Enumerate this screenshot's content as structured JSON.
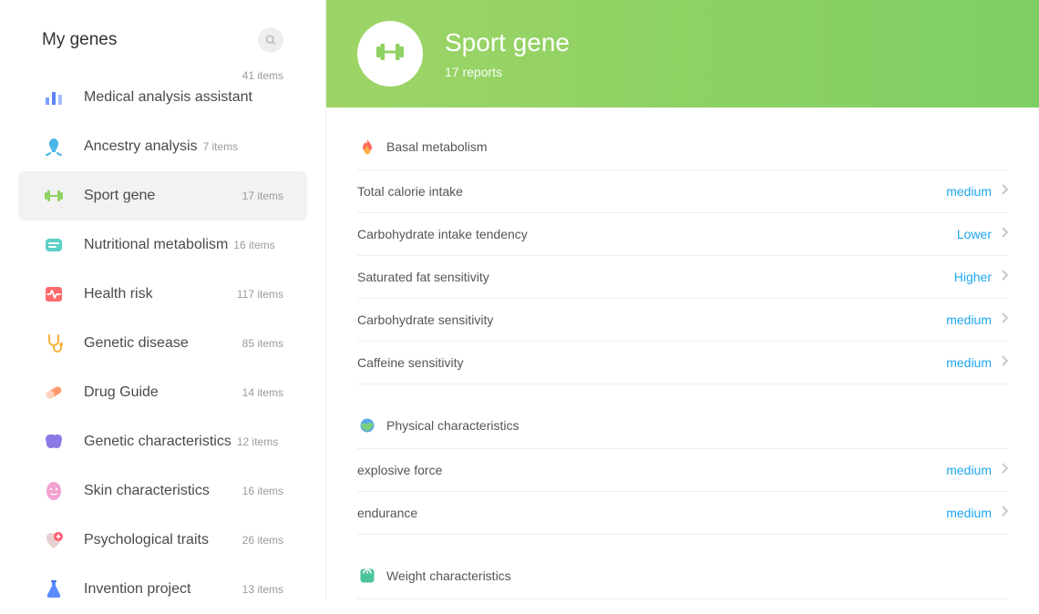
{
  "sidebar": {
    "title": "My genes",
    "items": [
      {
        "icon": "bar-chart-icon",
        "label": "Medical analysis assistant",
        "count": "41 items",
        "extra_above": true
      },
      {
        "icon": "ancestry-icon",
        "label": "Ancestry analysis",
        "count": "7 items",
        "count_near": true
      },
      {
        "icon": "dumbbell-icon",
        "label": "Sport gene",
        "count": "17 items",
        "active": true
      },
      {
        "icon": "nutrition-icon",
        "label": "Nutritional metabolism",
        "count": "16 items",
        "count_near": true
      },
      {
        "icon": "heart-monitor-icon",
        "label": "Health risk",
        "count": "117 items"
      },
      {
        "icon": "stethoscope-icon",
        "label": "Genetic disease",
        "count": "85 items"
      },
      {
        "icon": "pill-icon",
        "label": "Drug Guide",
        "count": "14 items"
      },
      {
        "icon": "brain-icon",
        "label": "Genetic characteristics",
        "count": "12 items",
        "count_near": true
      },
      {
        "icon": "face-mask-icon",
        "label": "Skin characteristics",
        "count": "16 items"
      },
      {
        "icon": "heart-plus-icon",
        "label": "Psychological traits",
        "count": "26 items"
      },
      {
        "icon": "flask-icon",
        "label": "Invention project",
        "count": "13 items"
      }
    ]
  },
  "hero": {
    "title": "Sport gene",
    "subtitle": "17 reports"
  },
  "sections": [
    {
      "icon": "flame-icon",
      "title": "Basal metabolism",
      "rows": [
        {
          "label": "Total calorie intake",
          "value": "medium"
        },
        {
          "label": "Carbohydrate intake tendency",
          "value": "Lower"
        },
        {
          "label": "Saturated fat sensitivity",
          "value": "Higher"
        },
        {
          "label": "Carbohydrate sensitivity",
          "value": "medium"
        },
        {
          "label": "Caffeine sensitivity",
          "value": "medium"
        }
      ]
    },
    {
      "icon": "globe-icon",
      "title": "Physical characteristics",
      "rows": [
        {
          "label": "explosive force",
          "value": "medium"
        },
        {
          "label": "endurance",
          "value": "medium"
        }
      ]
    },
    {
      "icon": "scale-icon",
      "title": "Weight characteristics",
      "rows": []
    }
  ],
  "colors": {
    "accent": "#1ea6f0",
    "hero_grad_from": "#9ed466",
    "hero_grad_to": "#7ecf63",
    "sidebar_active_bg": "#f2f2f2",
    "divider": "#eeeeee",
    "text_primary": "#4a4a4a",
    "text_secondary": "#9b9b9b"
  }
}
